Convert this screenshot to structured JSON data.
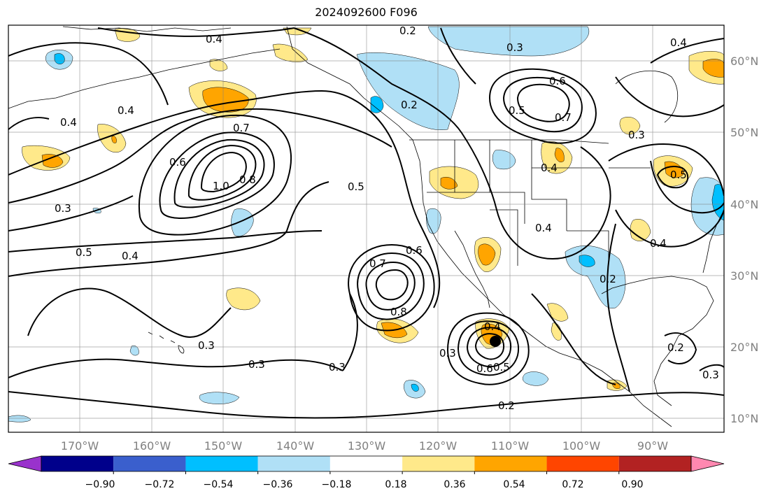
{
  "title": "2024092600 F096",
  "lon_labels": [
    "170°W",
    "160°W",
    "150°W",
    "140°W",
    "130°W",
    "120°W",
    "110°W",
    "100°W",
    "90°W"
  ],
  "lat_labels": [
    "60°N",
    "50°N",
    "40°N",
    "30°N",
    "20°N",
    "10°N"
  ],
  "colorbar": {
    "colors": [
      "#9932cc",
      "#00008b",
      "#3a5fcd",
      "#00bfff",
      "#b0e0f6",
      "#ffffff",
      "#ffe98a",
      "#ffa500",
      "#ff4500",
      "#b22222",
      "#ff88b0"
    ],
    "tick_labels": [
      "−0.90",
      "−0.72",
      "−0.54",
      "−0.36",
      "−0.18",
      "0.18",
      "0.36",
      "0.54",
      "0.72",
      "0.90"
    ]
  },
  "contour_labels": [
    "0.2",
    "0.3",
    "0.4",
    "0.5",
    "0.6",
    "0.7",
    "0.8",
    "1.0"
  ],
  "colors": {
    "land_line": "#000000",
    "grid": "#808080",
    "lat_lon_text": "#808080"
  }
}
